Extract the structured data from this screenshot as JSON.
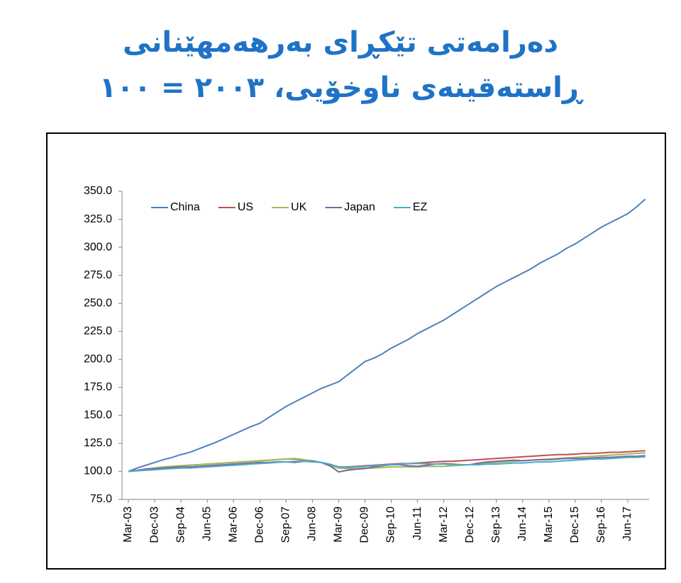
{
  "chart_data": {
    "type": "line",
    "title": [
      "دەرامەتی تێکڕای بەرهەمهێنانی",
      "ڕاستەقینەی ناوخۆیی، ٢٠٠٣ = ١٠٠"
    ],
    "categories": [
      "Mar-03",
      null,
      null,
      "Dec-03",
      null,
      null,
      "Sep-04",
      null,
      null,
      "Jun-05",
      null,
      null,
      "Mar-06",
      null,
      null,
      "Dec-06",
      null,
      null,
      "Sep-07",
      null,
      null,
      "Jun-08",
      null,
      null,
      "Mar-09",
      null,
      null,
      "Dec-09",
      null,
      null,
      "Sep-10",
      null,
      null,
      "Jun-11",
      null,
      null,
      "Mar-12",
      null,
      null,
      "Dec-12",
      null,
      null,
      "Sep-13",
      null,
      null,
      "Jun-14",
      null,
      null,
      "Mar-15",
      null,
      null,
      "Dec-15",
      null,
      null,
      "Sep-16",
      null,
      null,
      "Jun-17",
      null,
      null
    ],
    "series": [
      {
        "name": "China",
        "color": "#4f81bd",
        "values": [
          100,
          103,
          105.5,
          108,
          110.5,
          112.5,
          115,
          117,
          120,
          123,
          126,
          129.5,
          133,
          136.5,
          140,
          143,
          148,
          153,
          158,
          162,
          166,
          170,
          174,
          177,
          180,
          186,
          192,
          198,
          201,
          205,
          210,
          214,
          218,
          223,
          227,
          231,
          235,
          240,
          245,
          250,
          255,
          260,
          265,
          269,
          273,
          277,
          281,
          286,
          290,
          294,
          299,
          303,
          308,
          313,
          318,
          322,
          326,
          330,
          336,
          343
        ]
      },
      {
        "name": "US",
        "color": "#c0504d",
        "values": [
          100,
          101,
          102,
          103,
          104,
          104.5,
          105,
          105.5,
          106,
          106.5,
          107,
          107.5,
          108,
          108.5,
          109,
          109.5,
          110,
          110.5,
          111,
          111,
          110,
          109.5,
          108,
          106,
          104,
          104,
          104.5,
          105,
          105.5,
          106,
          106.5,
          107,
          107,
          107.5,
          108,
          108.5,
          109,
          109,
          109.5,
          110,
          110.5,
          111,
          111.5,
          112,
          112.5,
          113,
          113.5,
          114,
          114.5,
          115,
          115,
          115.5,
          116,
          116,
          116.5,
          117,
          117,
          117.5,
          118,
          118.5
        ]
      },
      {
        "name": "UK",
        "color": "#9bbb59",
        "values": [
          100,
          101,
          102,
          103,
          104,
          104.5,
          105,
          105.5,
          106,
          106.5,
          107,
          107.5,
          108,
          108.5,
          109,
          109.5,
          110,
          110.5,
          111,
          111.5,
          110.5,
          109.5,
          108,
          105,
          103,
          102.5,
          102.5,
          103,
          103,
          103.5,
          104,
          104,
          104,
          104,
          104.5,
          104.5,
          104.5,
          105,
          105.5,
          106,
          107,
          107.5,
          108,
          108.5,
          109,
          109.5,
          110,
          110.5,
          111,
          111.5,
          112,
          112.5,
          113,
          113.5,
          114,
          114.5,
          115,
          115.5,
          116,
          116.5
        ]
      },
      {
        "name": "Japan",
        "color": "#8064a2",
        "values": [
          100,
          101,
          102,
          102.5,
          103,
          103.5,
          104,
          104,
          104.5,
          105,
          105.5,
          106,
          106.5,
          107,
          107.5,
          108,
          108,
          108.5,
          108.5,
          108,
          109,
          109,
          108,
          105,
          99.5,
          101,
          102,
          102.5,
          104,
          105,
          106,
          106,
          105,
          104.5,
          105.5,
          106.5,
          107,
          106.5,
          106,
          106,
          107.5,
          108.5,
          109,
          109.5,
          110,
          109.5,
          110,
          110.5,
          110.5,
          111,
          111.5,
          111.5,
          111.5,
          112,
          112.5,
          112.5,
          113,
          113.5,
          113.5,
          114
        ]
      },
      {
        "name": "EZ",
        "color": "#4bacc6",
        "values": [
          100,
          100.5,
          101,
          101.5,
          102,
          102.5,
          103,
          103,
          103.5,
          104,
          104.5,
          105,
          105.5,
          106,
          106.5,
          107,
          107.5,
          108,
          108.5,
          109,
          109,
          108.5,
          108,
          106.5,
          104,
          103.5,
          104,
          104.5,
          105,
          105.5,
          106,
          106.5,
          107,
          107,
          107,
          106.5,
          106.5,
          106,
          106,
          106,
          106,
          106.5,
          106.5,
          107,
          107.5,
          107.5,
          108,
          108.5,
          108.5,
          109,
          109.5,
          110,
          110.5,
          111,
          111,
          111.5,
          112,
          112.5,
          112.5,
          113
        ]
      }
    ],
    "ylim": [
      75,
      350
    ],
    "yticks": [
      {
        "value": 75,
        "label": "75.0"
      },
      {
        "value": 100,
        "label": "100.0"
      },
      {
        "value": 125,
        "label": "125.0"
      },
      {
        "value": 150,
        "label": "150.0"
      },
      {
        "value": 175,
        "label": "175.0"
      },
      {
        "value": 200,
        "label": "200.0"
      },
      {
        "value": 225,
        "label": "225.0"
      },
      {
        "value": 250,
        "label": "250.0"
      },
      {
        "value": 275,
        "label": "275.0"
      },
      {
        "value": 300,
        "label": "300.0"
      },
      {
        "value": 325,
        "label": "325.0"
      },
      {
        "value": 350,
        "label": "350.0"
      }
    ],
    "grid": false,
    "legend": "top-left"
  }
}
